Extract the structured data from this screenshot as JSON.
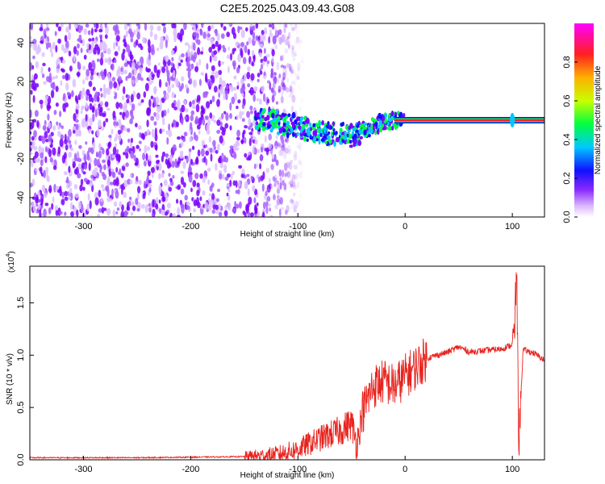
{
  "title": "C2E5.2025.043.09.43.G08",
  "chart_data": [
    {
      "type": "heatmap",
      "xlabel": "Height of straight line (km)",
      "ylabel": "Frequency (Hz)",
      "xlim": [
        -350,
        130
      ],
      "ylim": [
        -50,
        50
      ],
      "x_ticks": [
        -300,
        -200,
        -100,
        0,
        100
      ],
      "x_tick_labels": [
        "-300",
        "-200",
        "-100",
        "0",
        "100"
      ],
      "y_ticks": [
        -40,
        -20,
        0,
        20,
        40
      ],
      "y_tick_labels": [
        "-40",
        "-20",
        "0",
        "20",
        "40"
      ],
      "colorbar": {
        "label": "Normalized spectral amplitude",
        "range": [
          0,
          1
        ],
        "ticks": [
          0.0,
          0.2,
          0.4,
          0.6,
          0.8
        ],
        "tick_labels": [
          "0.0",
          "0.2",
          "0.4",
          "0.6",
          "0.8"
        ],
        "colors": [
          "#ffffff",
          "#c07bff",
          "#7a00ff",
          "#0000ff",
          "#00c8ff",
          "#00ff40",
          "#c8ff00",
          "#ffb000",
          "#ff2020",
          "#ff00ff"
        ]
      },
      "signal_track": [
        {
          "x": -130,
          "y": 1
        },
        {
          "x": -115,
          "y": -2
        },
        {
          "x": -100,
          "y": -3
        },
        {
          "x": -90,
          "y": -5
        },
        {
          "x": -80,
          "y": -6
        },
        {
          "x": -70,
          "y": -7
        },
        {
          "x": -60,
          "y": -7
        },
        {
          "x": -50,
          "y": -8
        },
        {
          "x": -40,
          "y": -6
        },
        {
          "x": -30,
          "y": -3
        },
        {
          "x": -20,
          "y": -1
        },
        {
          "x": -10,
          "y": 0
        },
        {
          "x": 0,
          "y": 0
        },
        {
          "x": 130,
          "y": 0
        }
      ],
      "noise_extent_x": [
        -350,
        -110
      ],
      "grid": false
    },
    {
      "type": "line",
      "xlabel": "Height of straight line (km)",
      "ylabel": "SNR (10 * v/v)",
      "multiplier_label": "(x10",
      "multiplier_exp": "4",
      "multiplier_close": ")",
      "xlim": [
        -350,
        130
      ],
      "ylim": [
        0,
        1.85
      ],
      "x_ticks": [
        -300,
        -200,
        -100,
        0,
        100
      ],
      "x_tick_labels": [
        "-300",
        "-200",
        "-100",
        "0",
        "100"
      ],
      "y_ticks": [
        0.0,
        0.5,
        1.0,
        1.5
      ],
      "y_tick_labels": [
        "0.0",
        "0.5",
        "1.0",
        "1.5"
      ],
      "color": "#e8231e",
      "x": [
        -350,
        -250,
        -150,
        -120,
        -100,
        -80,
        -60,
        -50,
        -45,
        -40,
        -30,
        -20,
        -10,
        0,
        20,
        40,
        50,
        60,
        80,
        90,
        95,
        100,
        102,
        104,
        106,
        110,
        120,
        130
      ],
      "y": [
        0.02,
        0.02,
        0.03,
        0.05,
        0.1,
        0.2,
        0.28,
        0.35,
        0.15,
        0.45,
        0.7,
        0.75,
        0.7,
        0.8,
        0.97,
        1.03,
        1.08,
        1.03,
        1.05,
        1.06,
        1.08,
        1.1,
        1.2,
        1.85,
        0.15,
        1.05,
        1.02,
        0.95
      ],
      "grid": false
    }
  ]
}
